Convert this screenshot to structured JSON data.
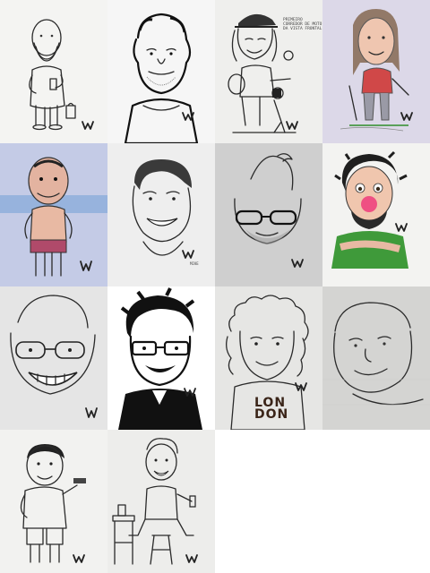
{
  "gallery": {
    "tiles": [
      {
        "id": 1,
        "subject": "caricature-man-bald-beard-holding-phone-and-bag",
        "background": "#f4f4f2"
      },
      {
        "id": 2,
        "subject": "caricature-man-ink-portrait",
        "background": "#f6f6f6"
      },
      {
        "id": 3,
        "subject": "caricature-man-cap-motorcycle-helmet",
        "background": "#efefed",
        "caption": "PRIMEIRO\nCORREDOR DE MOTO\nDA VISTA FRONTAL"
      },
      {
        "id": 4,
        "subject": "caricature-woman-golf-club",
        "background": "#dcd8e8"
      },
      {
        "id": 5,
        "subject": "caricature-man-swimsuit-beach",
        "background": "#c4cbe6"
      },
      {
        "id": 6,
        "subject": "caricature-man-smiling-pencil",
        "background": "#eeeeee",
        "small_text": "MIKE"
      },
      {
        "id": 7,
        "subject": "caricature-man-glasses-beard",
        "background": "#cfcfcf"
      },
      {
        "id": 8,
        "subject": "caricature-man-clown-nose-green-shirt",
        "background": "#f3f3f1"
      },
      {
        "id": 9,
        "subject": "caricature-man-glasses-grin",
        "background": "#e5e5e5"
      },
      {
        "id": 10,
        "subject": "caricature-man-black-hair-glasses-ink",
        "background": "#ffffff"
      },
      {
        "id": 11,
        "subject": "caricature-man-curly-hair-london-shirt",
        "background": "#e6e6e4",
        "shirt_text": "LON\nDON"
      },
      {
        "id": 12,
        "subject": "caricature-older-man-sketch",
        "background": "#d4d4d2"
      },
      {
        "id": 13,
        "subject": "caricature-man-holding-phone",
        "background": "#f2f2f0"
      },
      {
        "id": 14,
        "subject": "caricature-man-seated-stool-phone",
        "background": "#ededeb"
      }
    ],
    "signature_mark": "W",
    "colors": {
      "lavender": "#dcd8e8",
      "blue_paper": "#c4cbe6",
      "red_shirt": "#d04848",
      "green_shirt": "#3f9a3a",
      "clown_nose": "#ef4f83",
      "maroon_shorts": "#b04a6a",
      "skin_tone": "#e9b9a0"
    }
  }
}
